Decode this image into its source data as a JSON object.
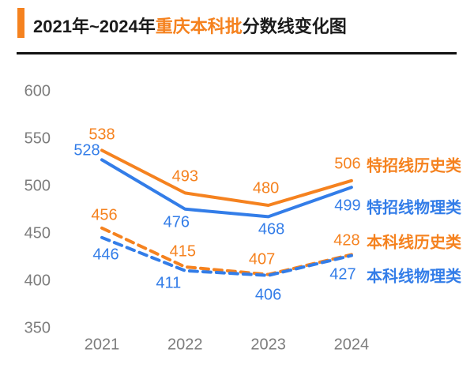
{
  "header": {
    "title_prefix": "2021年~2024年",
    "title_highlight": "重庆本科批",
    "title_suffix": "分数线变化图"
  },
  "colors": {
    "orange": "#F5821F",
    "blue": "#337DE8",
    "axis_gray": "#7D7D7D",
    "title_dark": "#1B1B1B",
    "divider_black": "#111111"
  },
  "chart_data": {
    "type": "line",
    "title": "2021年~2024年重庆本科批分数线变化图",
    "categories": [
      "2021",
      "2022",
      "2023",
      "2024"
    ],
    "xlabel": "",
    "ylabel": "",
    "ylim": [
      350,
      600
    ],
    "y_ticks": [
      600,
      550,
      500,
      450,
      400,
      350
    ],
    "grid": false,
    "legend_position": "right",
    "series": [
      {
        "name": "特招线历史类",
        "color_key": "orange",
        "line_style": "solid",
        "values": [
          538,
          493,
          480,
          506
        ]
      },
      {
        "name": "特招线物理类",
        "color_key": "blue",
        "line_style": "solid",
        "values": [
          528,
          476,
          468,
          499
        ]
      },
      {
        "name": "本科线历史类",
        "color_key": "orange",
        "line_style": "dashed",
        "values": [
          456,
          415,
          407,
          428
        ]
      },
      {
        "name": "本科线物理类",
        "color_key": "blue",
        "line_style": "dashed",
        "values": [
          446,
          411,
          406,
          427
        ]
      }
    ]
  }
}
